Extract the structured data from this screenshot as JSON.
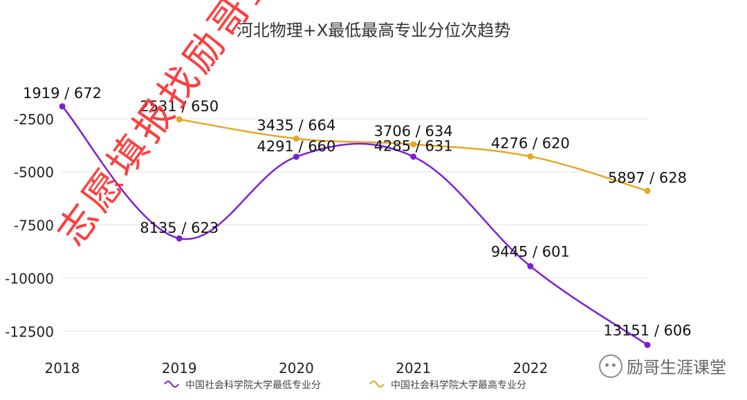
{
  "chart_data": {
    "type": "line",
    "title": "河北物理+X最低最高专业分位次趋势",
    "x": [
      "2018",
      "2019",
      "2020",
      "2021",
      "2022",
      "2023"
    ],
    "x_tick_labels": [
      "2018",
      "2019",
      "2020",
      "2021",
      "2022"
    ],
    "y_tick_labels": [
      "-2500",
      "-5000",
      "-7500",
      "-10000",
      "-12500"
    ],
    "y_ticks": [
      -2500,
      -5000,
      -7500,
      -10000,
      -12500
    ],
    "ylim": [
      -13500,
      0
    ],
    "grid": true,
    "legend_position": "bottom",
    "series": [
      {
        "name": "中国社会科学院大学最低专业分",
        "color": "#7b1fd6",
        "points": [
          {
            "x": "2018",
            "y": -1919,
            "label": "1919 / 672"
          },
          {
            "x": "2019",
            "y": -8135,
            "label": "8135 / 623"
          },
          {
            "x": "2020",
            "y": -4291,
            "label": "4291 / 660"
          },
          {
            "x": "2021",
            "y": -4285,
            "label": "4285 / 631"
          },
          {
            "x": "2022",
            "y": -9445,
            "label": "9445 / 601"
          },
          {
            "x": "2023",
            "y": -13151,
            "label": "13151 / 606"
          }
        ]
      },
      {
        "name": "中国社会科学院大学最高专业分",
        "color": "#e6a722",
        "points": [
          {
            "x": "2019",
            "y": -2531,
            "label": "2531 / 650"
          },
          {
            "x": "2020",
            "y": -3435,
            "label": "3435 / 664"
          },
          {
            "x": "2021",
            "y": -3706,
            "label": "3706 / 634"
          },
          {
            "x": "2022",
            "y": -4276,
            "label": "4276 / 620"
          },
          {
            "x": "2023",
            "y": -5897,
            "label": "5897 / 628"
          }
        ]
      }
    ]
  },
  "watermark": "志愿填报找励哥整理",
  "brand": "励哥生涯课堂"
}
